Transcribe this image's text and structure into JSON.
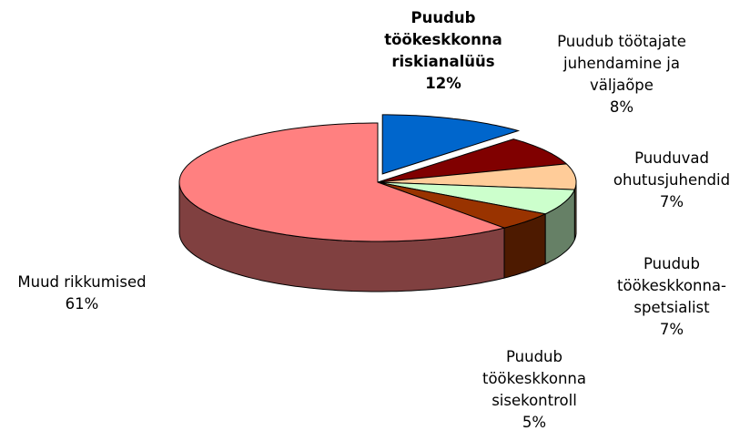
{
  "chart_data": {
    "type": "pie3d",
    "categories": [
      "Puudub töökeskkonna riskianalüüs",
      "Puudub töötajate juhendamine ja väljaõpe",
      "Puuduvad ohutusjuhendid",
      "Puudub töökeskkonna-spetsialist",
      "Puudub töökeskkonna sisekontroll",
      "Muud rikkumised"
    ],
    "values": [
      12,
      8,
      7,
      7,
      5,
      61
    ],
    "value_labels": [
      "12%",
      "8%",
      "7%",
      "7%",
      "5%",
      "61%"
    ],
    "colors": [
      "#0066cc",
      "#800000",
      "#ffcc99",
      "#ccffcc",
      "#993300",
      "#ff8080"
    ]
  }
}
